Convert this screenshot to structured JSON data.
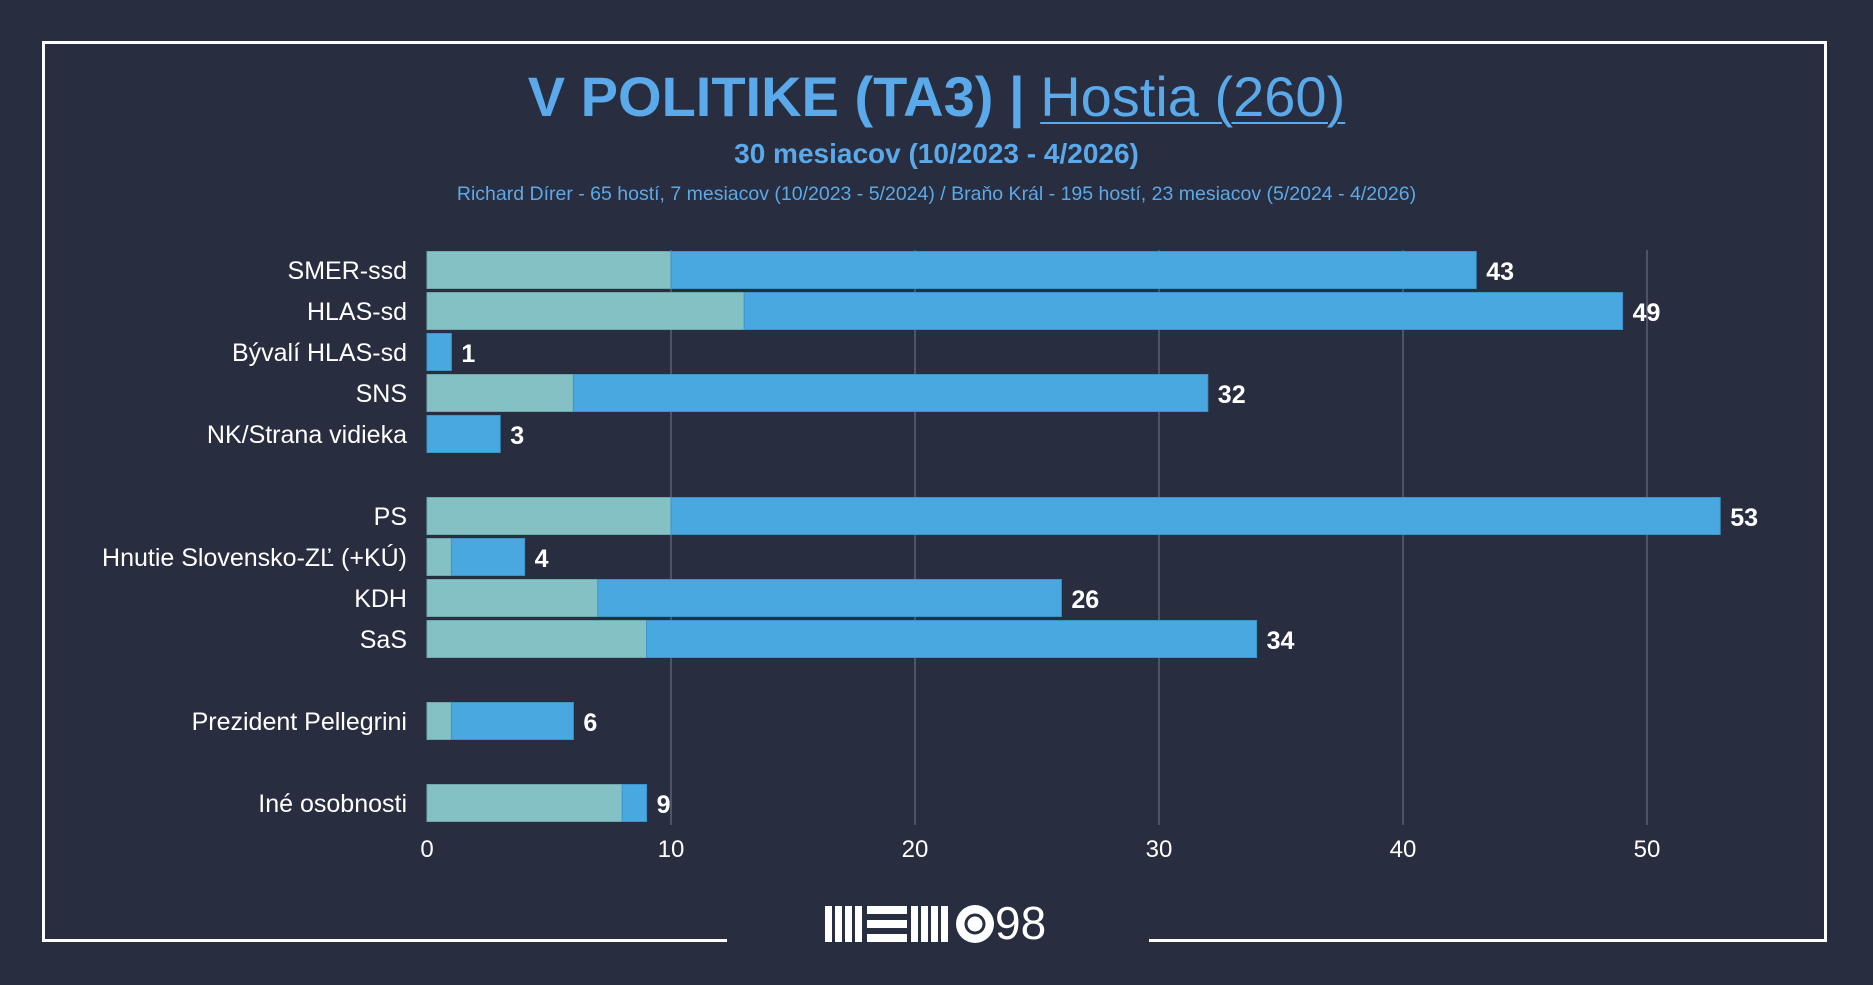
{
  "title": {
    "main": "V POLITIKE (TA3) |",
    "link": "Hostia (260)"
  },
  "subtitle": "30 mesiacov (10/2023 - 4/2026)",
  "note": "Richard Dírer - 65 hostí, 7 mesiacov (10/2023 - 5/2024) / Braňo Král - 195 hostí, 23 mesiacov (5/2024 - 4/2026)",
  "logo": {
    "text": "98",
    "icon": "memo98-logo"
  },
  "colors": {
    "background": "#282e3f",
    "series_1": "#83c1c5",
    "series_2": "#4aa8e0",
    "accent": "#5aa9ea",
    "grid": "#5a6175",
    "text": "#ffffff"
  },
  "chart_data": {
    "type": "bar",
    "orientation": "horizontal",
    "stacked": true,
    "categories": [
      "SMER-ssd",
      "HLAS-sd",
      "Bývalí HLAS-sd",
      "SNS",
      "NK/Strana vidieka",
      "PS",
      "Hnutie Slovensko-ZĽ (+KÚ)",
      "KDH",
      "SaS",
      "Prezident Pellegrini",
      "Iné osobnosti"
    ],
    "series": [
      {
        "values": [
          10,
          13,
          0,
          6,
          0,
          10,
          1,
          7,
          9,
          1,
          8
        ]
      },
      {
        "values": [
          33,
          36,
          1,
          26,
          3,
          43,
          3,
          19,
          25,
          5,
          1
        ]
      }
    ],
    "totals": [
      43,
      49,
      1,
      32,
      3,
      53,
      4,
      26,
      34,
      6,
      9
    ],
    "xticks": [
      0,
      10,
      20,
      30,
      40,
      50
    ],
    "xlim": [
      0,
      55
    ],
    "grid": true
  }
}
